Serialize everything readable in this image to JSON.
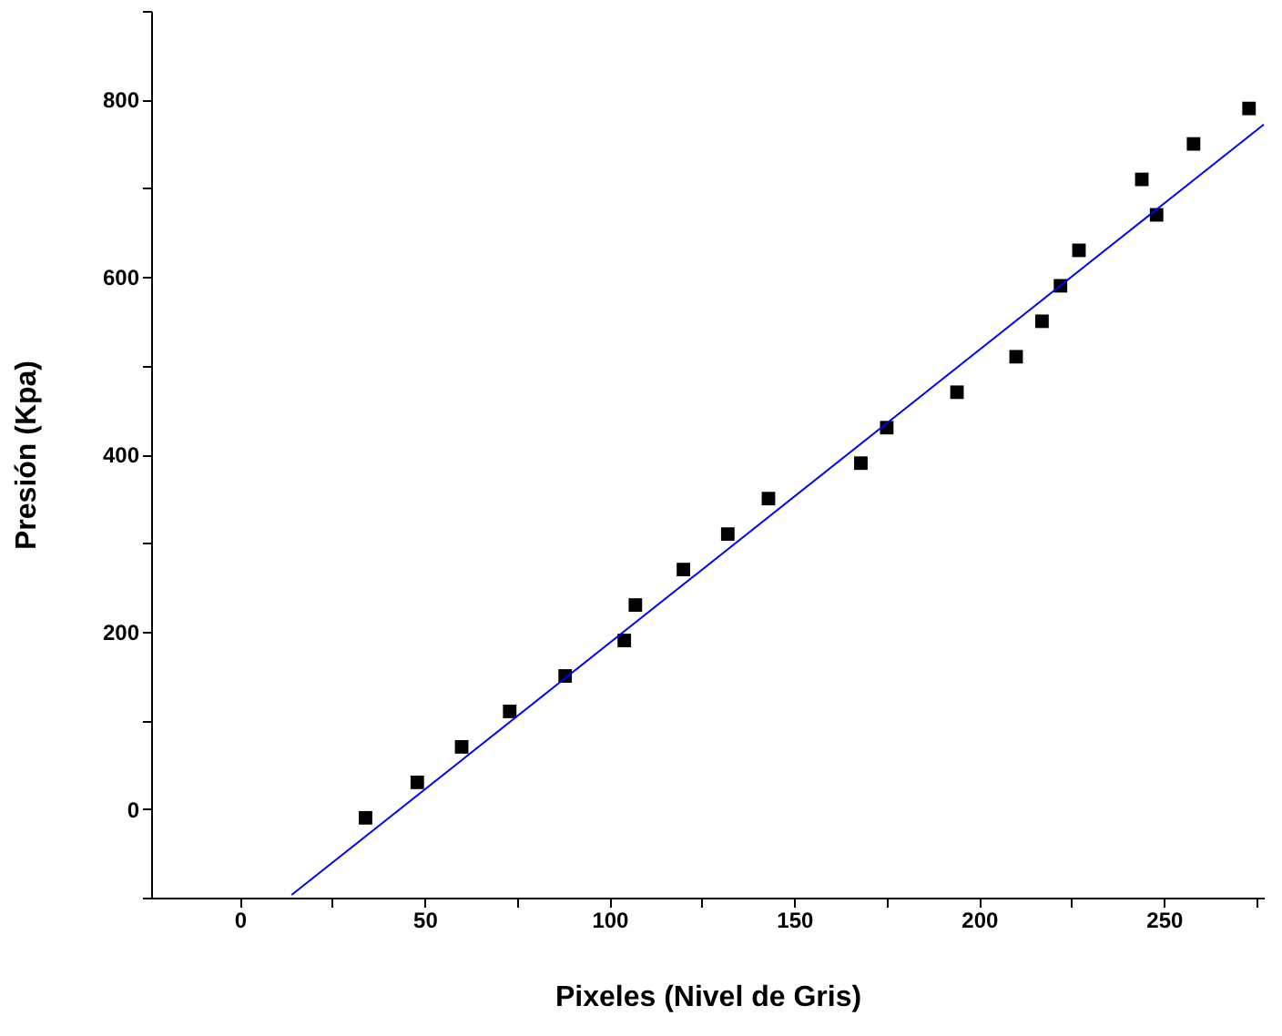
{
  "chart_data": {
    "type": "scatter",
    "xlabel": "Pixeles (Nivel de Gris)",
    "ylabel": "Presión (Kpa)",
    "xlim": [
      -24,
      277
    ],
    "ylim": [
      -100,
      900
    ],
    "xticks": [
      0,
      {
        "value": 25,
        "label": null
      },
      50,
      {
        "value": 75,
        "label": null
      },
      100,
      {
        "value": 125,
        "label": null
      },
      150,
      {
        "value": 175,
        "label": null
      },
      200,
      {
        "value": 225,
        "label": null
      },
      250,
      {
        "value": 275,
        "label": null
      }
    ],
    "yticks": [
      {
        "value": -100,
        "label": null
      },
      0,
      {
        "value": 100,
        "label": null
      },
      200,
      {
        "value": 300,
        "label": null
      },
      400,
      {
        "value": 500,
        "label": null
      },
      600,
      {
        "value": 700,
        "label": null
      },
      800,
      {
        "value": 900,
        "label": null
      }
    ],
    "grid": false,
    "series": [
      {
        "color": "#000000",
        "marker": "square",
        "x": [
          34,
          48,
          60,
          73,
          88,
          104,
          107,
          120,
          132,
          143,
          168,
          175,
          194,
          210,
          217,
          222,
          227,
          244,
          248,
          258,
          273
        ],
        "values": [
          -10,
          30,
          70,
          110,
          150,
          190,
          230,
          270,
          310,
          350,
          390,
          430,
          470,
          510,
          550,
          590,
          630,
          710,
          670,
          750,
          790
        ]
      },
      {
        "type": "line",
        "color": "#0000ff",
        "line_style": "solid",
        "x": [
          14,
          277
        ],
        "values": [
          -97,
          772
        ]
      }
    ]
  }
}
